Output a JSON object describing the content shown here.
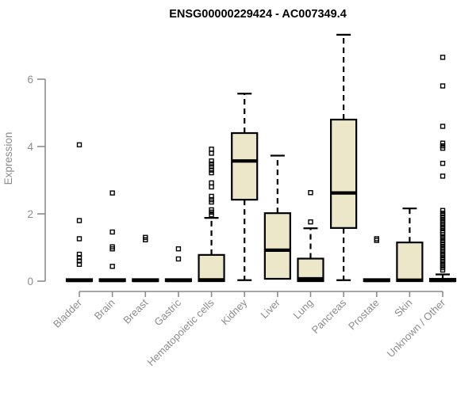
{
  "colors": {
    "background": "#FFFFFF",
    "box_fill": "#ECE7C8",
    "box_stroke": "#000000",
    "axis": "#8C8C8C",
    "tick_label": "#8C8C8C",
    "title": "#000000"
  },
  "chart_data": {
    "type": "boxplot",
    "title": "ENSG00000229424 - AC007349.4",
    "ylabel": "Expression",
    "xlabel": "",
    "yticks": [
      0,
      2,
      4,
      6
    ],
    "ylim": [
      0,
      7.4
    ],
    "grid": false,
    "legend": "none",
    "categories": [
      "Bladder",
      "Brain",
      "Breast",
      "Gastric",
      "Hematopoietic cells",
      "Kidney",
      "Liver",
      "Lung",
      "Pancreas",
      "Prostate",
      "Skin",
      "Unknown / Other"
    ],
    "boxes": [
      {
        "category": "Bladder",
        "q1": 0,
        "median": 0.02,
        "q3": 0.06,
        "whisker_low": 0,
        "whisker_high": 0.06,
        "outliers": [
          4.05,
          1.8,
          1.26,
          0.8,
          0.7,
          0.6,
          0.5
        ]
      },
      {
        "category": "Brain",
        "q1": 0,
        "median": 0.02,
        "q3": 0.06,
        "whisker_low": 0,
        "whisker_high": 0.06,
        "outliers": [
          2.62,
          1.46,
          1.02,
          0.96,
          0.44
        ]
      },
      {
        "category": "Breast",
        "q1": 0,
        "median": 0.02,
        "q3": 0.06,
        "whisker_low": 0,
        "whisker_high": 0.06,
        "outliers": [
          1.3,
          1.23
        ]
      },
      {
        "category": "Gastric",
        "q1": 0,
        "median": 0.02,
        "q3": 0.06,
        "whisker_low": 0,
        "whisker_high": 0.06,
        "outliers": [
          0.96,
          0.66
        ]
      },
      {
        "category": "Hematopoietic cells",
        "q1": 0,
        "median": 0.04,
        "q3": 0.78,
        "whisker_low": 0,
        "whisker_high": 1.88,
        "outliers": [
          3.92,
          3.8,
          3.57,
          3.48,
          3.4,
          3.3,
          3.22,
          2.92,
          2.8,
          2.52,
          2.42,
          2.35,
          2.12,
          2.05,
          1.97
        ]
      },
      {
        "category": "Kidney",
        "q1": 2.42,
        "median": 3.57,
        "q3": 4.4,
        "whisker_low": 0.03,
        "whisker_high": 5.57,
        "outliers": []
      },
      {
        "category": "Liver",
        "q1": 0.07,
        "median": 0.92,
        "q3": 2.02,
        "whisker_low": 0.07,
        "whisker_high": 3.73,
        "outliers": []
      },
      {
        "category": "Lung",
        "q1": 0,
        "median": 0.07,
        "q3": 0.67,
        "whisker_low": 0,
        "whisker_high": 1.57,
        "outliers": [
          2.63,
          1.76
        ]
      },
      {
        "category": "Pancreas",
        "q1": 1.58,
        "median": 2.62,
        "q3": 4.8,
        "whisker_low": 0.03,
        "whisker_high": 7.32,
        "outliers": []
      },
      {
        "category": "Prostate",
        "q1": 0,
        "median": 0.02,
        "q3": 0.06,
        "whisker_low": 0,
        "whisker_high": 0.06,
        "outliers": [
          1.26,
          1.21
        ]
      },
      {
        "category": "Skin",
        "q1": 0,
        "median": 0.03,
        "q3": 1.15,
        "whisker_low": 0,
        "whisker_high": 2.16,
        "outliers": []
      },
      {
        "category": "Unknown / Other",
        "q1": 0,
        "median": 0.02,
        "q3": 0.07,
        "whisker_low": 0,
        "whisker_high": 0.2,
        "outliers": [
          6.65,
          5.8,
          4.6,
          4.1,
          4.02,
          3.95,
          3.5,
          3.12,
          2.1,
          2.02,
          1.95,
          1.88,
          1.8,
          1.73,
          1.66,
          1.58,
          1.5,
          1.44,
          1.38,
          1.3,
          1.22,
          1.15,
          1.08,
          1.0,
          0.93,
          0.86,
          0.78,
          0.7,
          0.63,
          0.56,
          0.48,
          0.4,
          0.33
        ]
      }
    ]
  }
}
